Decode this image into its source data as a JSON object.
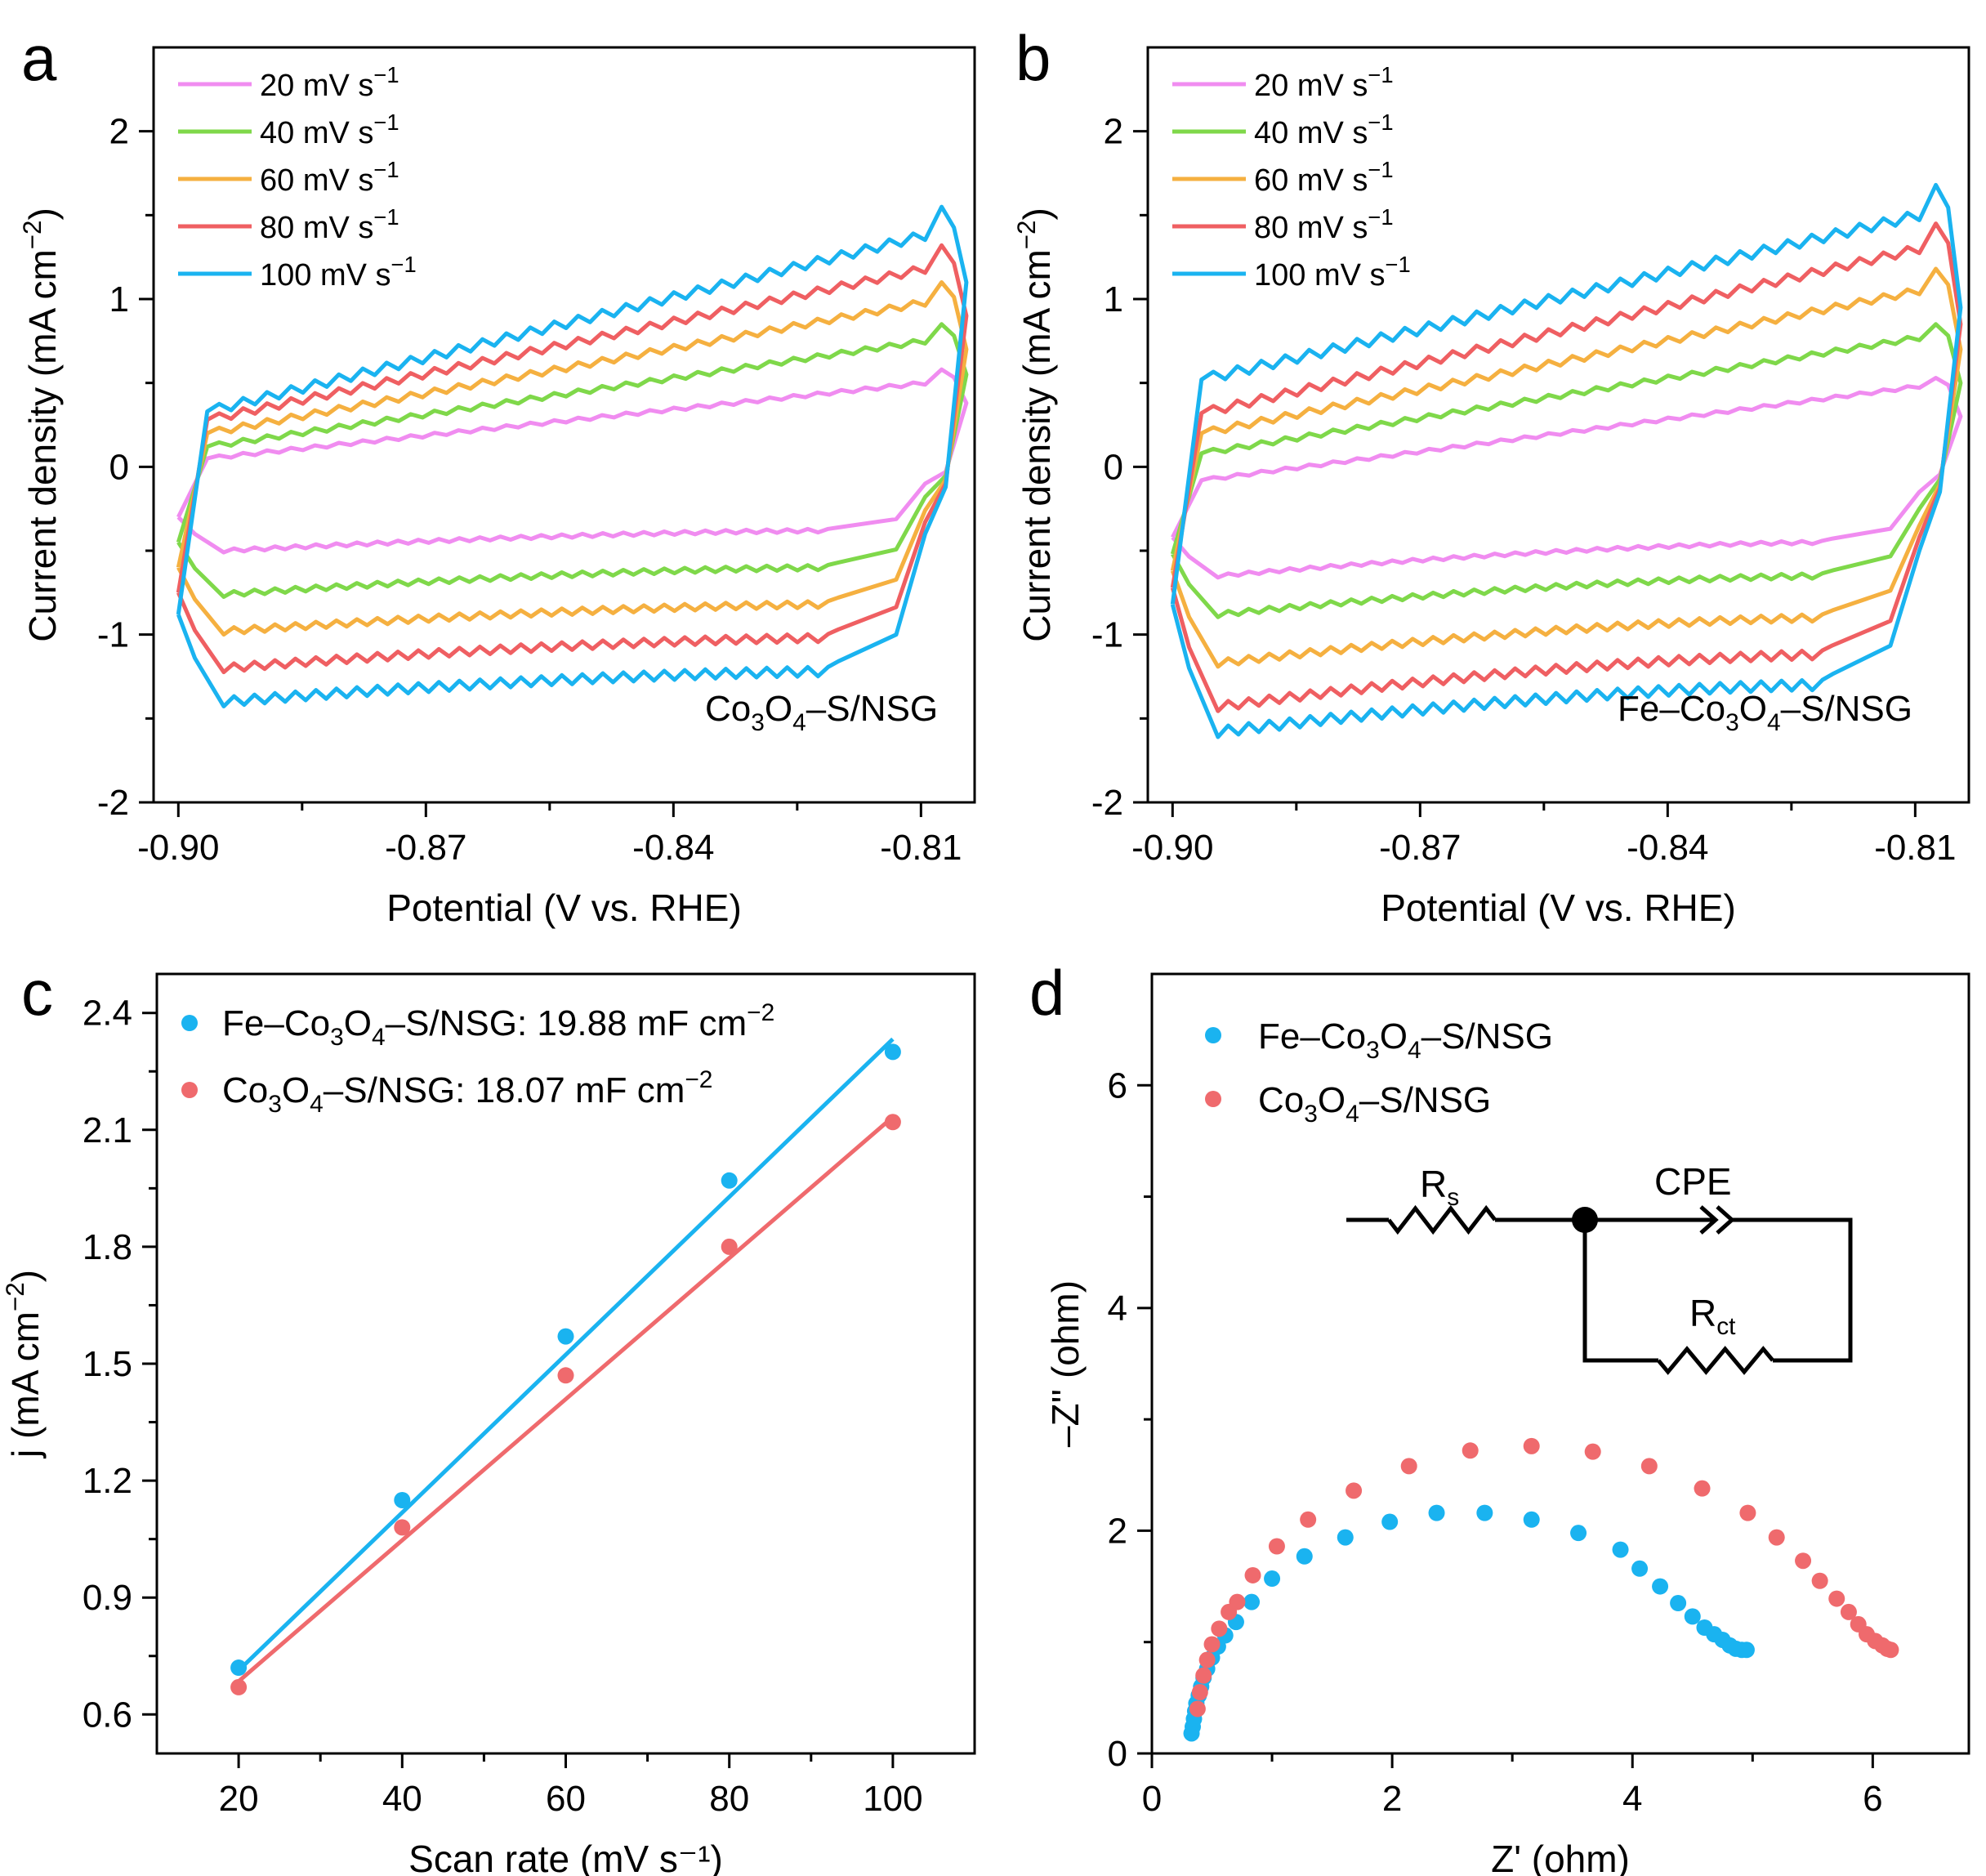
{
  "chart_data": [
    {
      "id": "a",
      "type": "line",
      "panel_label": "a",
      "xlabel": "Potential (V vs. RHE)",
      "ylabel": "Current density (mA cm⁻²)",
      "xlim": [
        -0.903,
        -0.8035
      ],
      "ylim": [
        -2,
        2.5
      ],
      "xticks": [
        "-0.90",
        "-0.87",
        "-0.84",
        "-0.81"
      ],
      "xtick_values": [
        -0.9,
        -0.87,
        -0.84,
        -0.81
      ],
      "yticks": [
        "-2",
        "-1",
        "0",
        "1",
        "2"
      ],
      "ytick_values": [
        -2,
        -1,
        0,
        1,
        2
      ],
      "sample_label": {
        "main": "Co",
        "s1": "3",
        "m2": "O",
        "s2": "4",
        "tail": "–S/NSG"
      },
      "series": [
        {
          "name": "20 mV s⁻¹",
          "color": "#f08cf0",
          "x_left": -0.9,
          "x_right": -0.8045,
          "y_left_top": -0.3,
          "y_start": 0.05,
          "y_end": 0.5,
          "y_peak": 0.58,
          "y_right": 0.38,
          "y_bot_left": -0.5,
          "y_bot_right": -0.38,
          "y_bot_end": -0.1
        },
        {
          "name": "40 mV s⁻¹",
          "color": "#7fd84a",
          "x_left": -0.9,
          "x_right": -0.8045,
          "y_left_top": -0.45,
          "y_start": 0.12,
          "y_end": 0.75,
          "y_peak": 0.85,
          "y_right": 0.55,
          "y_bot_left": -0.76,
          "y_bot_right": -0.6,
          "y_bot_end": -0.18
        },
        {
          "name": "60 mV s⁻¹",
          "color": "#f5b040",
          "x_left": -0.9,
          "x_right": -0.8045,
          "y_left_top": -0.6,
          "y_start": 0.2,
          "y_end": 0.98,
          "y_peak": 1.1,
          "y_right": 0.7,
          "y_bot_left": -0.98,
          "y_bot_right": -0.82,
          "y_bot_end": -0.26
        },
        {
          "name": "80 mV s⁻¹",
          "color": "#ef5f62",
          "x_left": -0.9,
          "x_right": -0.8045,
          "y_left_top": -0.75,
          "y_start": 0.28,
          "y_end": 1.18,
          "y_peak": 1.32,
          "y_right": 0.9,
          "y_bot_left": -1.2,
          "y_bot_right": -1.02,
          "y_bot_end": -0.33
        },
        {
          "name": "100 mV s⁻¹",
          "color": "#1ab3f0",
          "x_left": -0.9,
          "x_right": -0.8045,
          "y_left_top": -0.88,
          "y_start": 0.33,
          "y_end": 1.38,
          "y_peak": 1.55,
          "y_right": 1.1,
          "y_bot_left": -1.4,
          "y_bot_right": -1.22,
          "y_bot_end": -0.4
        }
      ]
    },
    {
      "id": "b",
      "type": "line",
      "panel_label": "b",
      "xlabel": "Potential (V vs. RHE)",
      "ylabel": "Current density (mA cm⁻²)",
      "xlim": [
        -0.903,
        -0.8035
      ],
      "ylim": [
        -2,
        2.5
      ],
      "xticks": [
        "-0.90",
        "-0.87",
        "-0.84",
        "-0.81"
      ],
      "xtick_values": [
        -0.9,
        -0.87,
        -0.84,
        -0.81
      ],
      "yticks": [
        "-2",
        "-1",
        "0",
        "1",
        "2"
      ],
      "ytick_values": [
        -2,
        -1,
        0,
        1,
        2
      ],
      "sample_label": {
        "main": "Fe–Co",
        "s1": "3",
        "m2": "O",
        "s2": "4",
        "tail": "–S/NSG"
      },
      "series": [
        {
          "name": "20 mV s⁻¹",
          "color": "#f08cf0",
          "x_left": -0.9,
          "x_right": -0.8045,
          "y_left_top": -0.42,
          "y_start": -0.08,
          "y_end": 0.48,
          "y_peak": 0.53,
          "y_right": 0.3,
          "y_bot_left": -0.65,
          "y_bot_right": -0.45,
          "y_bot_end": -0.15
        },
        {
          "name": "40 mV s⁻¹",
          "color": "#7fd84a",
          "x_left": -0.9,
          "x_right": -0.8045,
          "y_left_top": -0.52,
          "y_start": 0.08,
          "y_end": 0.77,
          "y_peak": 0.85,
          "y_right": 0.5,
          "y_bot_left": -0.88,
          "y_bot_right": -0.65,
          "y_bot_end": -0.25
        },
        {
          "name": "60 mV s⁻¹",
          "color": "#f5b040",
          "x_left": -0.9,
          "x_right": -0.8045,
          "y_left_top": -0.62,
          "y_start": 0.2,
          "y_end": 1.05,
          "y_peak": 1.18,
          "y_right": 0.7,
          "y_bot_left": -1.17,
          "y_bot_right": -0.9,
          "y_bot_end": -0.35
        },
        {
          "name": "80 mV s⁻¹",
          "color": "#ef5f62",
          "x_left": -0.9,
          "x_right": -0.8045,
          "y_left_top": -0.72,
          "y_start": 0.32,
          "y_end": 1.3,
          "y_peak": 1.45,
          "y_right": 0.85,
          "y_bot_left": -1.43,
          "y_bot_right": -1.12,
          "y_bot_end": -0.42
        },
        {
          "name": "100 mV s⁻¹",
          "color": "#1ab3f0",
          "x_left": -0.9,
          "x_right": -0.8045,
          "y_left_top": -0.82,
          "y_start": 0.52,
          "y_end": 1.5,
          "y_peak": 1.68,
          "y_right": 0.95,
          "y_bot_left": -1.58,
          "y_bot_right": -1.3,
          "y_bot_end": -0.5
        }
      ]
    },
    {
      "id": "c",
      "type": "scatter",
      "panel_label": "c",
      "xlabel": "Scan rate (mV s⁻¹)",
      "ylabel": "j (mA cm⁻²)",
      "xlim": [
        10,
        110
      ],
      "ylim": [
        0.5,
        2.5
      ],
      "xticks": [
        "20",
        "40",
        "60",
        "80",
        "100"
      ],
      "xtick_values": [
        20,
        40,
        60,
        80,
        100
      ],
      "yticks": [
        "0.6",
        "0.9",
        "1.2",
        "1.5",
        "1.8",
        "2.1",
        "2.4"
      ],
      "ytick_values": [
        0.6,
        0.9,
        1.2,
        1.5,
        1.8,
        2.1,
        2.4
      ],
      "series": [
        {
          "name": "Fe–Co₃O₄–S/NSG",
          "legend": {
            "main": "Fe–Co",
            "s1": "3",
            "m2": "O",
            "s2": "4",
            "tail": "–S/NSG: 19.88 mF cm"
          },
          "color": "#1ab3f0",
          "x": [
            20,
            40,
            60,
            80,
            100
          ],
          "y": [
            0.72,
            1.15,
            1.57,
            1.97,
            2.3
          ],
          "fit": [
            0.713,
            2.333
          ]
        },
        {
          "name": "Co₃O₄–S/NSG",
          "legend": {
            "main": "Co",
            "s1": "3",
            "m2": "O",
            "s2": "4",
            "tail": "–S/NSG: 18.07 mF cm"
          },
          "color": "#ef6a6d",
          "x": [
            20,
            40,
            60,
            80,
            100
          ],
          "y": [
            0.67,
            1.08,
            1.47,
            1.8,
            2.12
          ],
          "fit": [
            0.685,
            2.133
          ]
        }
      ]
    },
    {
      "id": "d",
      "type": "scatter",
      "panel_label": "d",
      "xlabel": "Z' (ohm)",
      "ylabel": "–Z'' (ohm)",
      "xlim": [
        0,
        6.8
      ],
      "ylim": [
        0,
        7.0
      ],
      "xticks": [
        "0",
        "2",
        "4",
        "6"
      ],
      "xtick_values": [
        0,
        2,
        4,
        6
      ],
      "yticks": [
        "0",
        "2",
        "4",
        "6"
      ],
      "ytick_values": [
        0,
        2,
        4,
        6
      ],
      "circuit": {
        "rs": "R",
        "rs_sub": "s",
        "cpe": "CPE",
        "rct": "R",
        "rct_sub": "ct"
      },
      "series": [
        {
          "name": "Fe–Co₃O₄–S/NSG",
          "legend": {
            "main": "Fe–Co",
            "s1": "3",
            "m2": "O",
            "s2": "4",
            "tail": "–S/NSG"
          },
          "color": "#1ab3f0",
          "x": [
            0.33,
            0.34,
            0.35,
            0.36,
            0.37,
            0.39,
            0.41,
            0.43,
            0.46,
            0.5,
            0.55,
            0.61,
            0.7,
            0.83,
            1.0,
            1.27,
            1.61,
            1.98,
            2.37,
            2.77,
            3.16,
            3.55,
            3.9,
            4.06,
            4.23,
            4.38,
            4.5,
            4.6,
            4.68,
            4.75,
            4.81,
            4.86,
            4.91,
            4.95
          ],
          "y": [
            0.18,
            0.24,
            0.31,
            0.38,
            0.45,
            0.52,
            0.6,
            0.68,
            0.76,
            0.86,
            0.96,
            1.06,
            1.18,
            1.36,
            1.57,
            1.77,
            1.94,
            2.08,
            2.16,
            2.16,
            2.1,
            1.98,
            1.83,
            1.66,
            1.5,
            1.35,
            1.23,
            1.13,
            1.07,
            1.02,
            0.97,
            0.94,
            0.93,
            0.93
          ]
        },
        {
          "name": "Co₃O₄–S/NSG",
          "legend": {
            "main": "Co",
            "s1": "3",
            "m2": "O",
            "s2": "4",
            "tail": "–S/NSG"
          },
          "color": "#ef6a6d",
          "x": [
            0.38,
            0.4,
            0.43,
            0.46,
            0.5,
            0.56,
            0.64,
            0.71,
            0.84,
            1.04,
            1.3,
            1.68,
            2.14,
            2.65,
            3.16,
            3.67,
            4.14,
            4.58,
            4.96,
            5.2,
            5.42,
            5.56,
            5.7,
            5.8,
            5.88,
            5.95,
            6.02,
            6.08,
            6.12,
            6.15
          ],
          "y": [
            0.4,
            0.55,
            0.7,
            0.84,
            0.98,
            1.12,
            1.27,
            1.36,
            1.6,
            1.86,
            2.1,
            2.36,
            2.58,
            2.72,
            2.76,
            2.71,
            2.58,
            2.38,
            2.16,
            1.94,
            1.73,
            1.55,
            1.39,
            1.27,
            1.16,
            1.07,
            1.01,
            0.97,
            0.94,
            0.93
          ]
        }
      ]
    }
  ]
}
